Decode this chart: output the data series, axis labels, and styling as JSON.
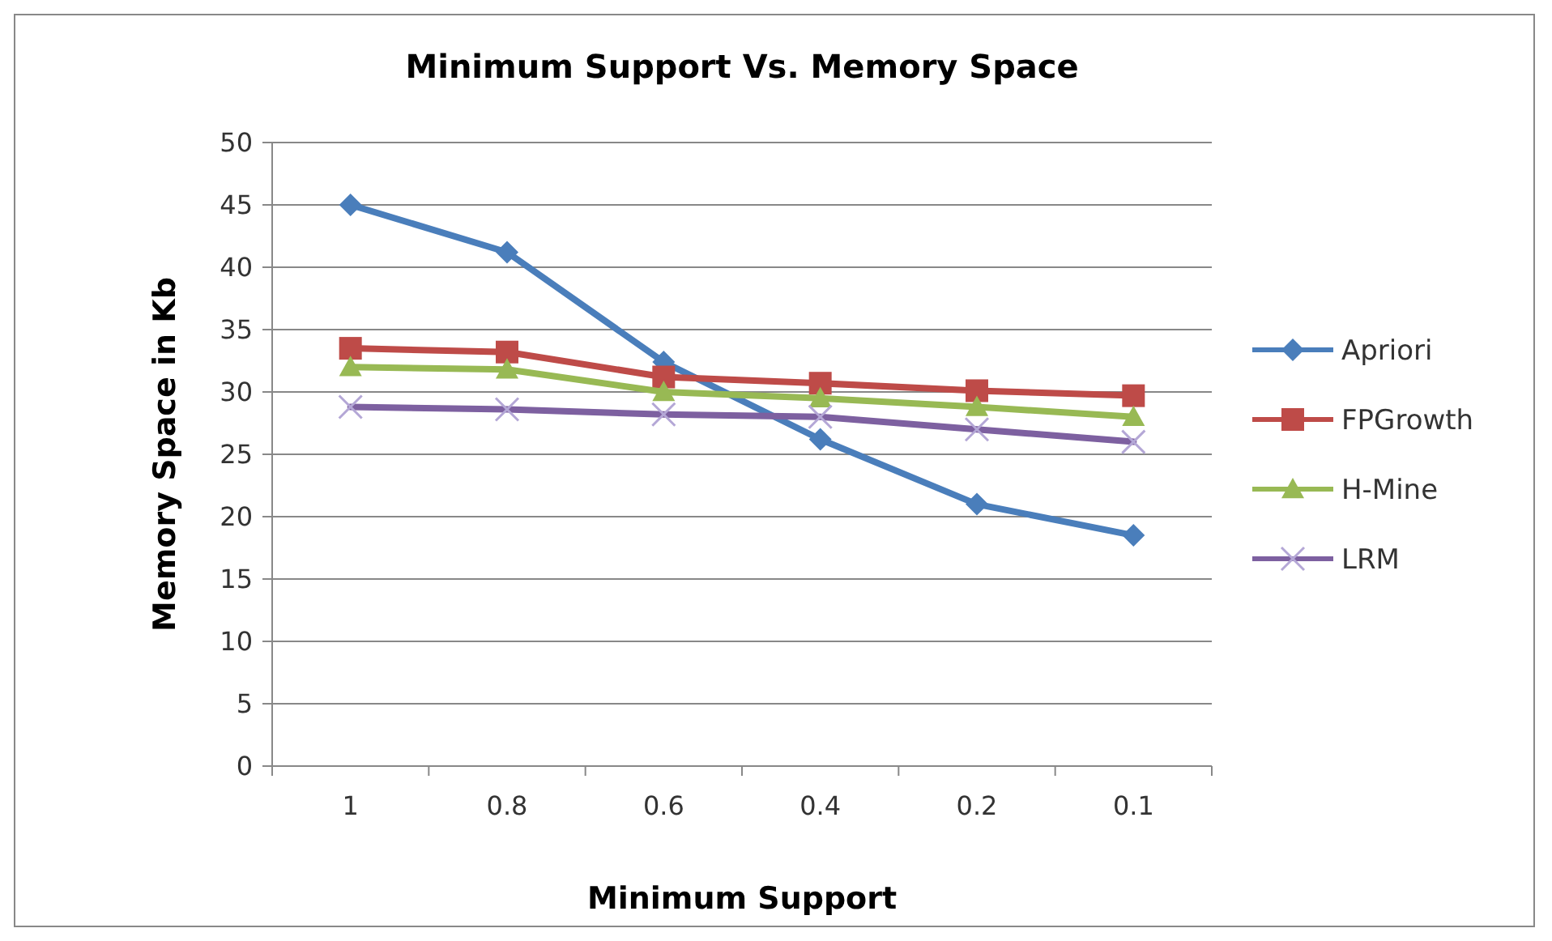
{
  "chart_data": {
    "type": "line",
    "title": "Minimum Support Vs. Memory Space",
    "xlabel": "Minimum Support",
    "ylabel": "Memory Space in Kb",
    "categories": [
      "1",
      "0.8",
      "0.6",
      "0.4",
      "0.2",
      "0.1"
    ],
    "ylim": [
      0,
      50
    ],
    "yticks": [
      0,
      5,
      10,
      15,
      20,
      25,
      30,
      35,
      40,
      45,
      50
    ],
    "grid": "y",
    "legend": "right",
    "series": [
      {
        "name": "Apriori",
        "color": "#4a7ebb",
        "marker": "diamond",
        "values": [
          45,
          41.2,
          32.4,
          26.2,
          21,
          18.5
        ]
      },
      {
        "name": "FPGrowth",
        "color": "#be4b48",
        "marker": "square",
        "values": [
          33.5,
          33.2,
          31.2,
          30.7,
          30.1,
          29.7
        ]
      },
      {
        "name": "H-Mine",
        "color": "#98b954",
        "marker": "triangle",
        "values": [
          32,
          31.8,
          30,
          29.5,
          28.8,
          28
        ]
      },
      {
        "name": "LRM",
        "color": "#7d60a0",
        "marker": "cross",
        "values": [
          28.8,
          28.6,
          28.2,
          28,
          27,
          26
        ]
      }
    ]
  }
}
